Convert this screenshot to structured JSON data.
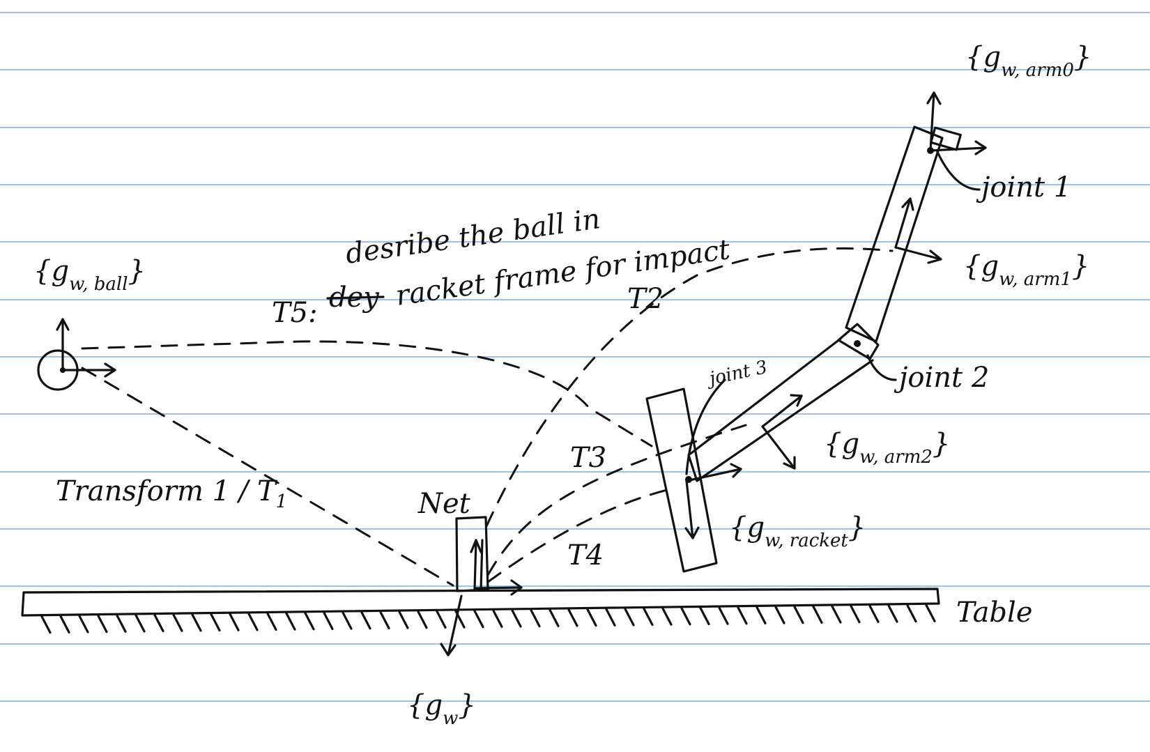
{
  "frames": {
    "arm0": {
      "brace_open": "{",
      "g": "g",
      "sub": "w, arm0",
      "brace_close": "}"
    },
    "arm1": {
      "brace_open": "{",
      "g": "g",
      "sub": "w, arm1",
      "brace_close": "}"
    },
    "arm2": {
      "brace_open": "{",
      "g": "g",
      "sub": "w, arm2",
      "brace_close": "}"
    },
    "ball": {
      "brace_open": "{",
      "g": "g",
      "sub": "w, ball",
      "brace_close": "}"
    },
    "racket": {
      "brace_open": "{",
      "g": "g",
      "sub": "w, racket",
      "brace_close": "}"
    },
    "world": {
      "brace_open": "{",
      "g": "g",
      "sub": "w",
      "brace_close": "}"
    }
  },
  "joints": {
    "joint1": "joint 1",
    "joint2": "joint 2",
    "joint3": "joint 3"
  },
  "transforms": {
    "t1": "Transform 1 / T",
    "t1_sub": "1",
    "t2": "T2",
    "t3": "T3",
    "t4": "T4",
    "t5": "T5:",
    "t5_struck": "dey",
    "note_line1": "desribe the ball in",
    "note_line2": "racket frame for impact"
  },
  "objects": {
    "net": "Net",
    "table": "Table"
  },
  "colors": {
    "ink": "#111111",
    "paper_rule": "#9ec3e6",
    "paper": "#ffffff"
  }
}
